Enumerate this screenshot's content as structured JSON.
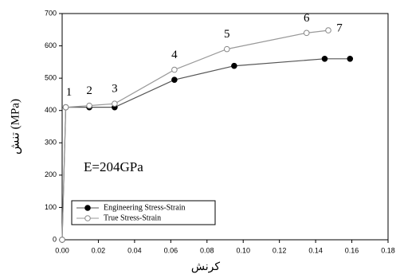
{
  "chart_data": {
    "type": "line",
    "series": [
      {
        "name": "Engineering Stress-Strain",
        "color": "#000000",
        "marker": "filled",
        "x": [
          0,
          0.002,
          0.015,
          0.029,
          0.062,
          0.095,
          0.145,
          0.159
        ],
        "values": [
          0,
          410,
          410,
          410,
          495,
          538,
          560,
          560
        ]
      },
      {
        "name": "True Stress-Strain",
        "color": "#888888",
        "marker": "open",
        "x": [
          0,
          0.002,
          0.015,
          0.029,
          0.062,
          0.091,
          0.135,
          0.147
        ],
        "values": [
          0,
          410,
          415,
          421,
          526,
          590,
          640,
          648
        ]
      }
    ],
    "xlabel": "کرنش",
    "ylabel": "تنش (MPa)",
    "point_labels": [
      "1",
      "2",
      "3",
      "4",
      "5",
      "6",
      "7"
    ],
    "note": "E=204GPa",
    "xlim": [
      0,
      0.18
    ],
    "xticks": [
      {
        "value": 0,
        "label": "0.00"
      },
      {
        "value": 0.02,
        "label": "0.02"
      },
      {
        "value": 0.04,
        "label": "0.04"
      },
      {
        "value": 0.06,
        "label": "0.06"
      },
      {
        "value": 0.08,
        "label": "0.08"
      },
      {
        "value": 0.1,
        "label": "0.10"
      },
      {
        "value": 0.12,
        "label": "0.12"
      },
      {
        "value": 0.14,
        "label": "0.14"
      },
      {
        "value": 0.16,
        "label": "0.16"
      },
      {
        "value": 0.18,
        "label": "0.18"
      }
    ],
    "ylim": [
      0,
      700
    ],
    "yticks": [
      0,
      100,
      200,
      300,
      400,
      500,
      600,
      700
    ],
    "grid": false,
    "legend": "lower left"
  }
}
